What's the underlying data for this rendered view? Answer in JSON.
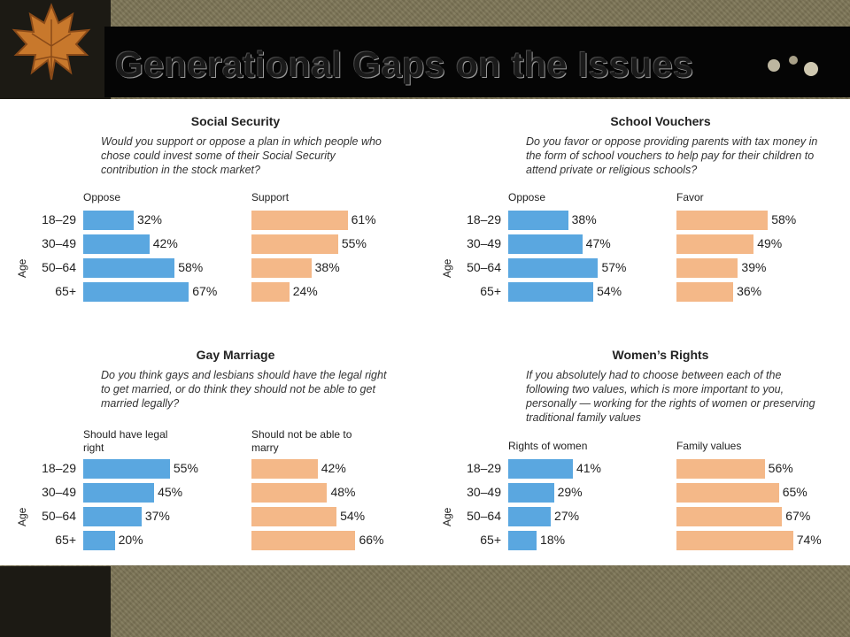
{
  "page": {
    "title": "Generational Gaps on the Issues"
  },
  "theme": {
    "blue": "#5aa7e0",
    "orange": "#f4b888",
    "background": "#7c7455"
  },
  "chart_data": [
    {
      "type": "bar",
      "title": "Social Security",
      "question": "Would you support or oppose a plan in which people who chose could invest some of their Social Security contribution in the stock market?",
      "axis_label": "Age",
      "categories": [
        "18–29",
        "30–49",
        "50–64",
        "65+"
      ],
      "series": [
        {
          "name": "Oppose",
          "values": [
            32,
            42,
            58,
            67
          ],
          "labels": [
            "32%",
            "42%",
            "58%",
            "67%"
          ]
        },
        {
          "name": "Support",
          "values": [
            61,
            55,
            38,
            24
          ],
          "labels": [
            "61%",
            "55%",
            "38%",
            "24%"
          ]
        }
      ]
    },
    {
      "type": "bar",
      "title": "School Vouchers",
      "question": "Do you favor or oppose providing parents with tax money in the form of school vouchers to help pay for their children to attend private or religious schools?",
      "axis_label": "Age",
      "categories": [
        "18–29",
        "30–49",
        "50–64",
        "65+"
      ],
      "series": [
        {
          "name": "Oppose",
          "values": [
            38,
            47,
            57,
            54
          ],
          "labels": [
            "38%",
            "47%",
            "57%",
            "54%"
          ]
        },
        {
          "name": "Favor",
          "values": [
            58,
            49,
            39,
            36
          ],
          "labels": [
            "58%",
            "49%",
            "39%",
            "36%"
          ]
        }
      ]
    },
    {
      "type": "bar",
      "title": "Gay Marriage",
      "question": "Do you think gays and lesbians should have the legal right to get married, or do think they should not be able to get married legally?",
      "axis_label": "Age",
      "categories": [
        "18–29",
        "30–49",
        "50–64",
        "65+"
      ],
      "series": [
        {
          "name": "Should have legal right",
          "values": [
            55,
            45,
            37,
            20
          ],
          "labels": [
            "55%",
            "45%",
            "37%",
            "20%"
          ]
        },
        {
          "name": "Should not be able to marry",
          "values": [
            42,
            48,
            54,
            66
          ],
          "labels": [
            "42%",
            "48%",
            "54%",
            "66%"
          ]
        }
      ]
    },
    {
      "type": "bar",
      "title": "Women’s Rights",
      "question": "If you absolutely had to choose between each of the following two values, which is more important to you, personally — working for the rights of women or preserving traditional family values",
      "axis_label": "Age",
      "categories": [
        "18–29",
        "30–49",
        "50–64",
        "65+"
      ],
      "series": [
        {
          "name": "Rights of women",
          "values": [
            41,
            29,
            27,
            18
          ],
          "labels": [
            "41%",
            "29%",
            "27%",
            "18%"
          ]
        },
        {
          "name": "Family values",
          "values": [
            56,
            65,
            67,
            74
          ],
          "labels": [
            "56%",
            "65%",
            "67%",
            "74%"
          ]
        }
      ]
    }
  ]
}
